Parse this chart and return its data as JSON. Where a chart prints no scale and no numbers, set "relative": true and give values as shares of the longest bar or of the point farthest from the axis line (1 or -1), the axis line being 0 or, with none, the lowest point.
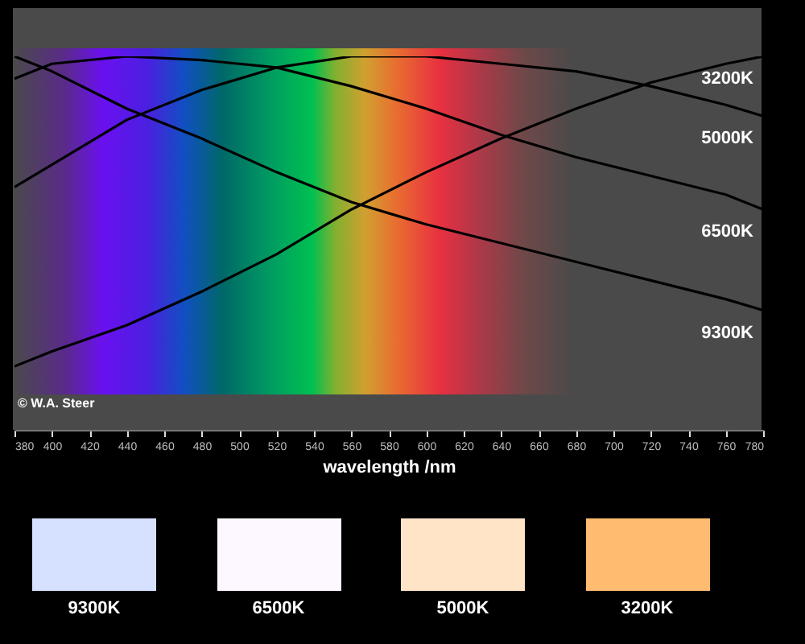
{
  "chart_data": [
    {
      "type": "line",
      "relative": true,
      "xlabel": "wavelength /nm",
      "xlim": [
        380,
        780
      ],
      "xticks": [
        380,
        400,
        420,
        440,
        460,
        480,
        500,
        520,
        540,
        560,
        580,
        600,
        620,
        640,
        660,
        680,
        700,
        720,
        740,
        760,
        780
      ],
      "x": [
        380,
        400,
        440,
        480,
        520,
        560,
        600,
        640,
        680,
        720,
        760,
        780
      ],
      "legend": false,
      "grid": false,
      "annotations": [
        "© W.A. Steer"
      ],
      "series": [
        {
          "name": "3200K",
          "color": "#000000",
          "values": [
            0.17,
            0.21,
            0.28,
            0.37,
            0.47,
            0.59,
            0.69,
            0.78,
            0.86,
            0.93,
            0.98,
            1.0
          ]
        },
        {
          "name": "5000K",
          "color": "#000000",
          "values": [
            0.65,
            0.71,
            0.83,
            0.91,
            0.97,
            1.0,
            1.0,
            0.98,
            0.96,
            0.92,
            0.87,
            0.84
          ]
        },
        {
          "name": "6500K",
          "color": "#000000",
          "values": [
            0.94,
            0.98,
            1.0,
            0.99,
            0.97,
            0.92,
            0.86,
            0.79,
            0.73,
            0.68,
            0.63,
            0.59
          ]
        },
        {
          "name": "9300K",
          "color": "#000000",
          "values": [
            1.0,
            0.96,
            0.86,
            0.78,
            0.69,
            0.61,
            0.55,
            0.5,
            0.45,
            0.4,
            0.35,
            0.32
          ]
        }
      ]
    },
    {
      "type": "other",
      "categories": [
        "9300K",
        "6500K",
        "5000K",
        "3200K"
      ],
      "colors": [
        "#d6e0ff",
        "#fdf8ff",
        "#ffe4c8",
        "#ffbb70"
      ]
    }
  ]
}
